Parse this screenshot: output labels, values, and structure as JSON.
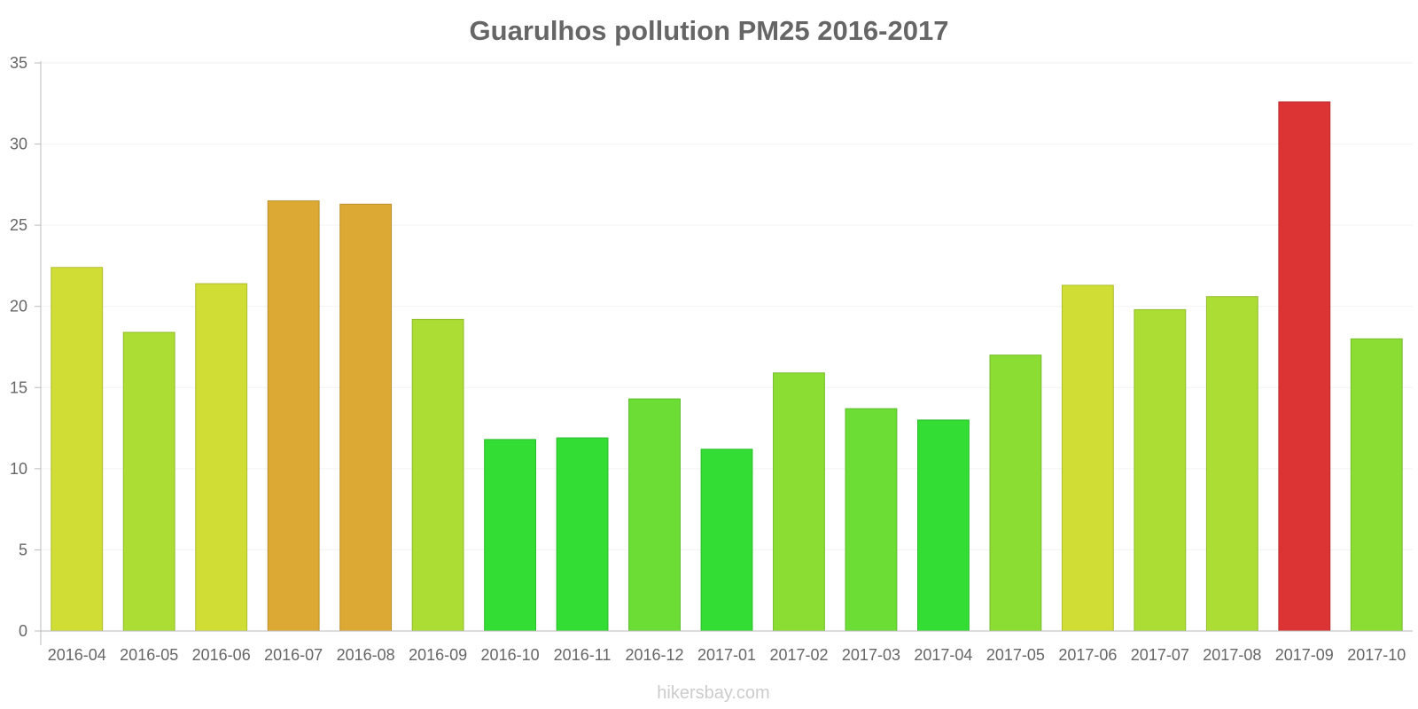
{
  "chart_data": {
    "type": "bar",
    "title": "Guarulhos pollution PM25 2016-2017",
    "xlabel": "",
    "ylabel": "",
    "ylim": [
      0,
      35
    ],
    "yticks": [
      0,
      5,
      10,
      15,
      20,
      25,
      30,
      35
    ],
    "grid": true,
    "categories": [
      "2016-04",
      "2016-05",
      "2016-06",
      "2016-07",
      "2016-08",
      "2016-09",
      "2016-10",
      "2016-11",
      "2016-12",
      "2017-01",
      "2017-02",
      "2017-03",
      "2017-04",
      "2017-05",
      "2017-06",
      "2017-07",
      "2017-08",
      "2017-09",
      "2017-10"
    ],
    "values": [
      22.4,
      18.4,
      21.4,
      26.5,
      26.3,
      19.2,
      11.8,
      11.9,
      14.3,
      11.2,
      15.9,
      13.7,
      13.0,
      17.0,
      21.3,
      19.8,
      20.6,
      32.6,
      18.0
    ],
    "bar_colors": [
      "#cfdd34",
      "#abdd34",
      "#cfdd34",
      "#dcaa34",
      "#dcaa34",
      "#abdd34",
      "#34dd34",
      "#34dd34",
      "#6bdd34",
      "#34dd34",
      "#8bdd34",
      "#6bdd34",
      "#34dd34",
      "#8bdd34",
      "#cfdd34",
      "#abdd34",
      "#abdd34",
      "#dc3434",
      "#8bdd34"
    ]
  },
  "watermark": "hikersbay.com"
}
